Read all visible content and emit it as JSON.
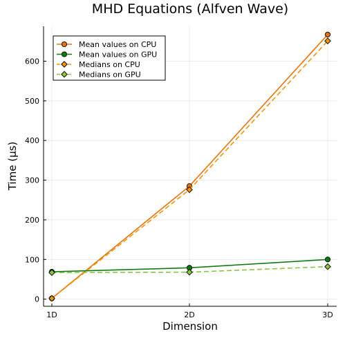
{
  "chart_data": {
    "type": "line",
    "title": "MHD Equations (Alfven Wave)",
    "xlabel": "Dimension",
    "ylabel": "Time (µs)",
    "categories": [
      "1D",
      "2D",
      "3D"
    ],
    "ylim": [
      -18,
      688
    ],
    "yticks": [
      0,
      100,
      200,
      300,
      400,
      500,
      600
    ],
    "grid": true,
    "legend_position": "top-left",
    "series": [
      {
        "name": "Mean values on CPU",
        "values": [
          2,
          285,
          667
        ],
        "color": "#e6740b",
        "dash": "solid",
        "marker": "circle"
      },
      {
        "name": "Mean values on GPU",
        "values": [
          69,
          79,
          100
        ],
        "color": "#107c10",
        "dash": "solid",
        "marker": "circle"
      },
      {
        "name": "Medians on CPU",
        "values": [
          2,
          276,
          651
        ],
        "color": "#f0950a",
        "dash": "dashed",
        "marker": "diamond"
      },
      {
        "name": "Medians on GPU",
        "values": [
          67,
          68,
          82
        ],
        "color": "#8cc63f",
        "dash": "dashed",
        "marker": "diamond"
      }
    ]
  }
}
